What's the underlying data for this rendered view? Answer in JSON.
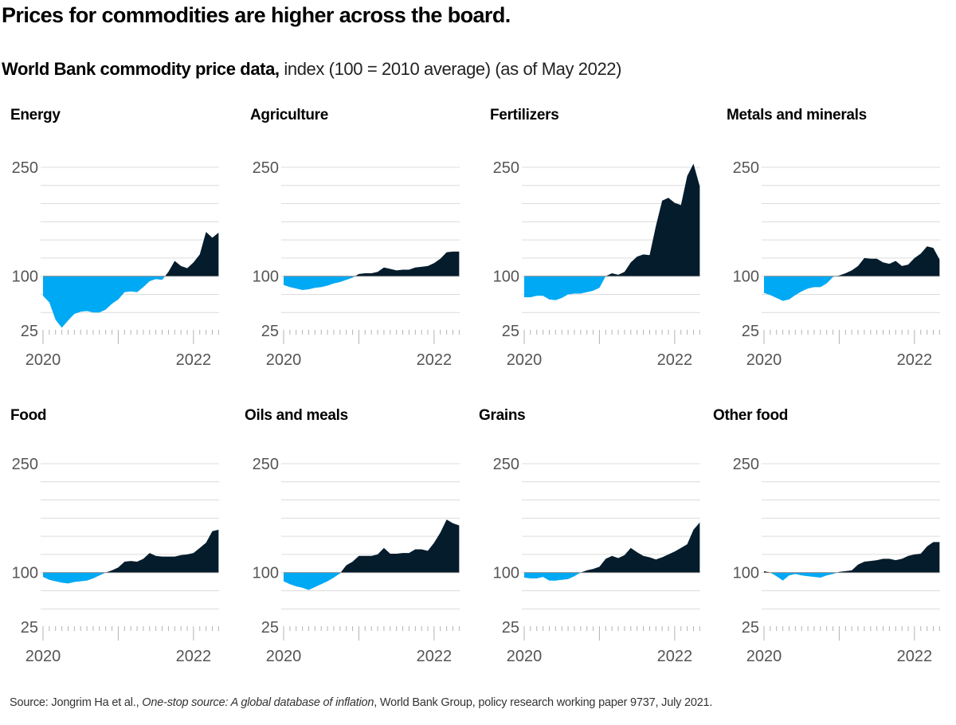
{
  "header": {
    "title": "Prices for commodities are higher across the board.",
    "subtitle_bold": "World Bank commodity price data,",
    "subtitle_rest": " index (100 = 2010 average) (as of May 2022)"
  },
  "colors": {
    "below_baseline": "#00a9f4",
    "above_baseline": "#051c2c",
    "gridline": "#dcdcdc",
    "axis": "#b3b3b3",
    "tick_label": "#555555"
  },
  "chart_data": [
    {
      "type": "area",
      "title": "Energy",
      "baseline": 100,
      "x_start": "2020-01",
      "x_end": "2022-05",
      "frequency": "monthly",
      "x_tick_labels": [
        "2020",
        "2022"
      ],
      "y_tick_labels": [
        "250",
        "100",
        "25"
      ],
      "ylim": [
        25,
        250
      ],
      "grid_step": 25,
      "values": [
        73,
        64,
        40,
        29,
        39,
        48,
        51,
        52,
        50,
        50,
        54,
        62,
        68,
        78,
        79,
        78,
        85,
        93,
        96,
        95,
        106,
        121,
        114,
        111,
        119,
        130,
        161,
        153,
        160
      ]
    },
    {
      "type": "area",
      "title": "Agriculture",
      "baseline": 100,
      "x_start": "2020-01",
      "x_end": "2022-05",
      "frequency": "monthly",
      "x_tick_labels": [
        "2020",
        "2022"
      ],
      "y_tick_labels": [
        "250",
        "100",
        "25"
      ],
      "ylim": [
        25,
        250
      ],
      "grid_step": 25,
      "values": [
        88,
        85,
        83,
        81,
        82,
        84,
        85,
        87,
        90,
        92,
        95,
        98,
        103,
        104,
        104,
        106,
        112,
        110,
        108,
        109,
        109,
        112,
        113,
        114,
        118,
        124,
        133,
        134,
        134
      ]
    },
    {
      "type": "area",
      "title": "Fertilizers",
      "baseline": 100,
      "x_start": "2020-01",
      "x_end": "2022-05",
      "frequency": "monthly",
      "x_tick_labels": [
        "2020",
        "2022"
      ],
      "y_tick_labels": [
        "250",
        "100",
        "25"
      ],
      "ylim": [
        25,
        250
      ],
      "grid_step": 25,
      "values": [
        71,
        71,
        73,
        73,
        68,
        67,
        70,
        75,
        76,
        76,
        78,
        80,
        84,
        100,
        104,
        102,
        106,
        119,
        127,
        130,
        129,
        169,
        204,
        208,
        201,
        198,
        238,
        255,
        224
      ]
    },
    {
      "type": "area",
      "title": "Metals and minerals",
      "baseline": 100,
      "x_start": "2020-01",
      "x_end": "2022-05",
      "frequency": "monthly",
      "x_tick_labels": [
        "2020",
        "2022"
      ],
      "y_tick_labels": [
        "250",
        "100",
        "25"
      ],
      "ylim": [
        25,
        250
      ],
      "grid_step": 25,
      "values": [
        77,
        74,
        70,
        66,
        68,
        74,
        79,
        83,
        85,
        85,
        90,
        99,
        101,
        104,
        108,
        114,
        125,
        124,
        124,
        119,
        117,
        121,
        114,
        116,
        125,
        131,
        141,
        139,
        123
      ]
    },
    {
      "type": "area",
      "title": "Food",
      "baseline": 100,
      "x_start": "2020-01",
      "x_end": "2022-05",
      "frequency": "monthly",
      "x_tick_labels": [
        "2020",
        "2022"
      ],
      "y_tick_labels": [
        "250",
        "100",
        "25"
      ],
      "ylim": [
        25,
        250
      ],
      "grid_step": 25,
      "values": [
        94,
        90,
        88,
        86,
        85,
        87,
        88,
        89,
        92,
        96,
        100,
        103,
        107,
        115,
        116,
        115,
        119,
        127,
        123,
        122,
        122,
        122,
        124,
        125,
        127,
        134,
        141,
        157,
        159
      ]
    },
    {
      "type": "area",
      "title": "Oils and meals",
      "baseline": 100,
      "x_start": "2020-01",
      "x_end": "2022-05",
      "frequency": "monthly",
      "x_tick_labels": [
        "2020",
        "2022"
      ],
      "y_tick_labels": [
        "250",
        "100",
        "25"
      ],
      "ylim": [
        25,
        250
      ],
      "grid_step": 25,
      "values": [
        88,
        84,
        81,
        79,
        76,
        80,
        84,
        88,
        93,
        99,
        110,
        115,
        123,
        123,
        123,
        125,
        134,
        126,
        126,
        127,
        127,
        132,
        132,
        130,
        141,
        155,
        173,
        168,
        165
      ]
    },
    {
      "type": "area",
      "title": "Grains",
      "baseline": 100,
      "x_start": "2020-01",
      "x_end": "2022-05",
      "frequency": "monthly",
      "x_tick_labels": [
        "2020",
        "2022"
      ],
      "y_tick_labels": [
        "250",
        "100",
        "25"
      ],
      "ylim": [
        25,
        250
      ],
      "grid_step": 25,
      "values": [
        93,
        92,
        92,
        94,
        89,
        89,
        90,
        91,
        95,
        100,
        103,
        105,
        108,
        119,
        123,
        120,
        124,
        134,
        128,
        123,
        121,
        118,
        121,
        125,
        129,
        134,
        139,
        159,
        169
      ]
    },
    {
      "type": "area",
      "title": "Other food",
      "baseline": 100,
      "x_start": "2020-01",
      "x_end": "2022-05",
      "frequency": "monthly",
      "x_tick_labels": [
        "2020",
        "2022"
      ],
      "y_tick_labels": [
        "250",
        "100",
        "25"
      ],
      "ylim": [
        25,
        250
      ],
      "grid_step": 25,
      "values": [
        102,
        100,
        95,
        89,
        96,
        98,
        96,
        95,
        94,
        93,
        96,
        98,
        101,
        102,
        103,
        111,
        115,
        116,
        117,
        119,
        119,
        117,
        119,
        123,
        125,
        126,
        136,
        142,
        142
      ]
    }
  ],
  "footer": {
    "source_prefix": "Source: Jongrim Ha et al., ",
    "source_italic": "One-stop source: A global database of inflation",
    "source_suffix": ", World Bank Group, policy research working paper 9737, July 2021."
  }
}
